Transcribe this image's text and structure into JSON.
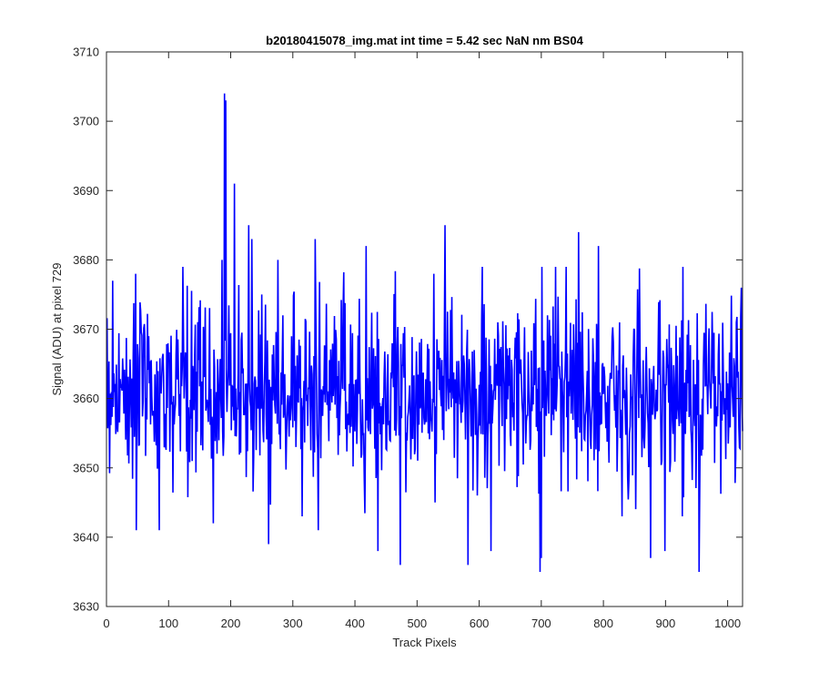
{
  "chart_data": {
    "type": "line",
    "title": "b20180415078_img.mat int time = 5.42 sec  NaN nm BS04",
    "xlabel": "Track Pixels",
    "ylabel": "Signal (ADU) at pixel 729",
    "xlim": [
      0,
      1024
    ],
    "ylim": [
      3630,
      3710
    ],
    "xticks": [
      0,
      100,
      200,
      300,
      400,
      500,
      600,
      700,
      800,
      900,
      1000
    ],
    "yticks": [
      3630,
      3640,
      3650,
      3660,
      3670,
      3680,
      3690,
      3700,
      3710
    ],
    "grid": false,
    "series": [
      {
        "color": "#0000ff",
        "n_points": 1024,
        "x_start": 1,
        "baseline": 3661,
        "noise_std": 6.5,
        "min": 3635,
        "max": 3704,
        "notable_points": [
          {
            "x": 190,
            "y": 3704
          },
          {
            "x": 192,
            "y": 3703
          },
          {
            "x": 206,
            "y": 3691
          },
          {
            "x": 186,
            "y": 3680
          },
          {
            "x": 229,
            "y": 3685
          },
          {
            "x": 234,
            "y": 3683
          },
          {
            "x": 250,
            "y": 3675
          },
          {
            "x": 276,
            "y": 3680
          },
          {
            "x": 336,
            "y": 3683
          },
          {
            "x": 418,
            "y": 3682
          },
          {
            "x": 545,
            "y": 3685
          },
          {
            "x": 527,
            "y": 3678
          },
          {
            "x": 740,
            "y": 3679
          },
          {
            "x": 760,
            "y": 3684
          },
          {
            "x": 792,
            "y": 3682
          },
          {
            "x": 10,
            "y": 3677
          },
          {
            "x": 47,
            "y": 3678
          },
          {
            "x": 48,
            "y": 3641
          },
          {
            "x": 85,
            "y": 3641
          },
          {
            "x": 172,
            "y": 3642
          },
          {
            "x": 261,
            "y": 3639
          },
          {
            "x": 341,
            "y": 3641
          },
          {
            "x": 437,
            "y": 3638
          },
          {
            "x": 473,
            "y": 3636
          },
          {
            "x": 582,
            "y": 3636
          },
          {
            "x": 619,
            "y": 3638
          },
          {
            "x": 698,
            "y": 3635
          },
          {
            "x": 700,
            "y": 3637
          },
          {
            "x": 876,
            "y": 3637
          },
          {
            "x": 899,
            "y": 3638
          },
          {
            "x": 954,
            "y": 3635
          },
          {
            "x": 1022,
            "y": 3676
          }
        ]
      }
    ]
  }
}
